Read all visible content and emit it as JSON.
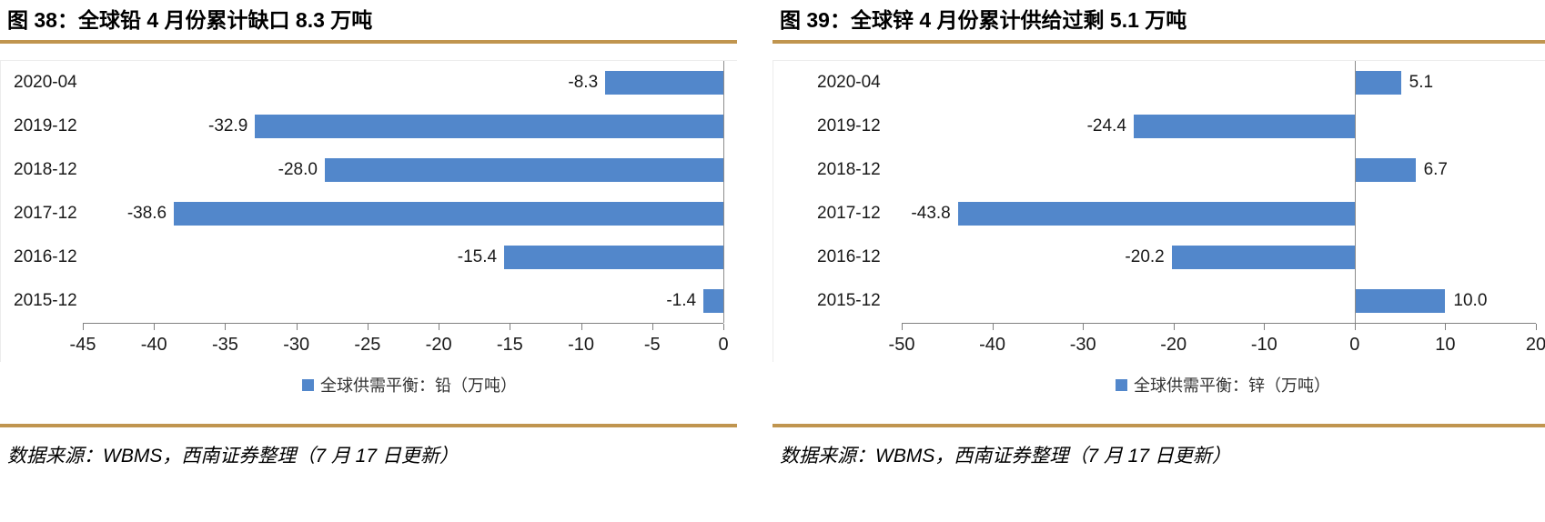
{
  "colors": {
    "bar_blue": "#5287cb",
    "gold_rule": "#c0954f",
    "axis_gray": "#808080"
  },
  "panels": [
    {
      "title": "图 38：全球铅 4 月份累计缺口 8.3 万吨",
      "legend": "全球供需平衡：铅（万吨）",
      "source": "数据来源：WBMS，西南证券整理（7 月 17 日更新）"
    },
    {
      "title": "图 39：全球锌 4 月份累计供给过剩 5.1 万吨",
      "legend": "全球供需平衡：锌（万吨）",
      "source": "数据来源：WBMS，西南证券整理（7 月 17 日更新）"
    }
  ],
  "chart_data": [
    {
      "type": "bar",
      "orientation": "horizontal",
      "title": "图 38：全球铅 4 月份累计缺口 8.3 万吨",
      "categories": [
        "2020-04",
        "2019-12",
        "2018-12",
        "2017-12",
        "2016-12",
        "2015-12"
      ],
      "values": [
        -8.3,
        -32.9,
        -28.0,
        -38.6,
        -15.4,
        -1.4
      ],
      "value_labels": [
        "-8.3",
        "-32.9",
        "-28.0",
        "-38.6",
        "-15.4",
        "-1.4"
      ],
      "legend_entries": [
        "全球供需平衡：铅（万吨）"
      ],
      "legend_position": "bottom",
      "xlim": [
        -45,
        0
      ],
      "xticks": [
        -45,
        -40,
        -35,
        -30,
        -25,
        -20,
        -15,
        -10,
        -5,
        0
      ],
      "grid": false,
      "bar_color": "#5287cb"
    },
    {
      "type": "bar",
      "orientation": "horizontal",
      "title": "图 39：全球锌 4 月份累计供给过剩 5.1 万吨",
      "categories": [
        "2020-04",
        "2019-12",
        "2018-12",
        "2017-12",
        "2016-12",
        "2015-12"
      ],
      "values": [
        5.1,
        -24.4,
        6.7,
        -43.8,
        -20.2,
        10.0
      ],
      "value_labels": [
        "5.1",
        "-24.4",
        "6.7",
        "-43.8",
        "-20.2",
        "10.0"
      ],
      "legend_entries": [
        "全球供需平衡：锌（万吨）"
      ],
      "legend_position": "bottom",
      "xlim": [
        -50,
        20
      ],
      "xticks": [
        -50,
        -40,
        -30,
        -20,
        -10,
        0,
        10,
        20
      ],
      "grid": false,
      "bar_color": "#5287cb"
    }
  ]
}
